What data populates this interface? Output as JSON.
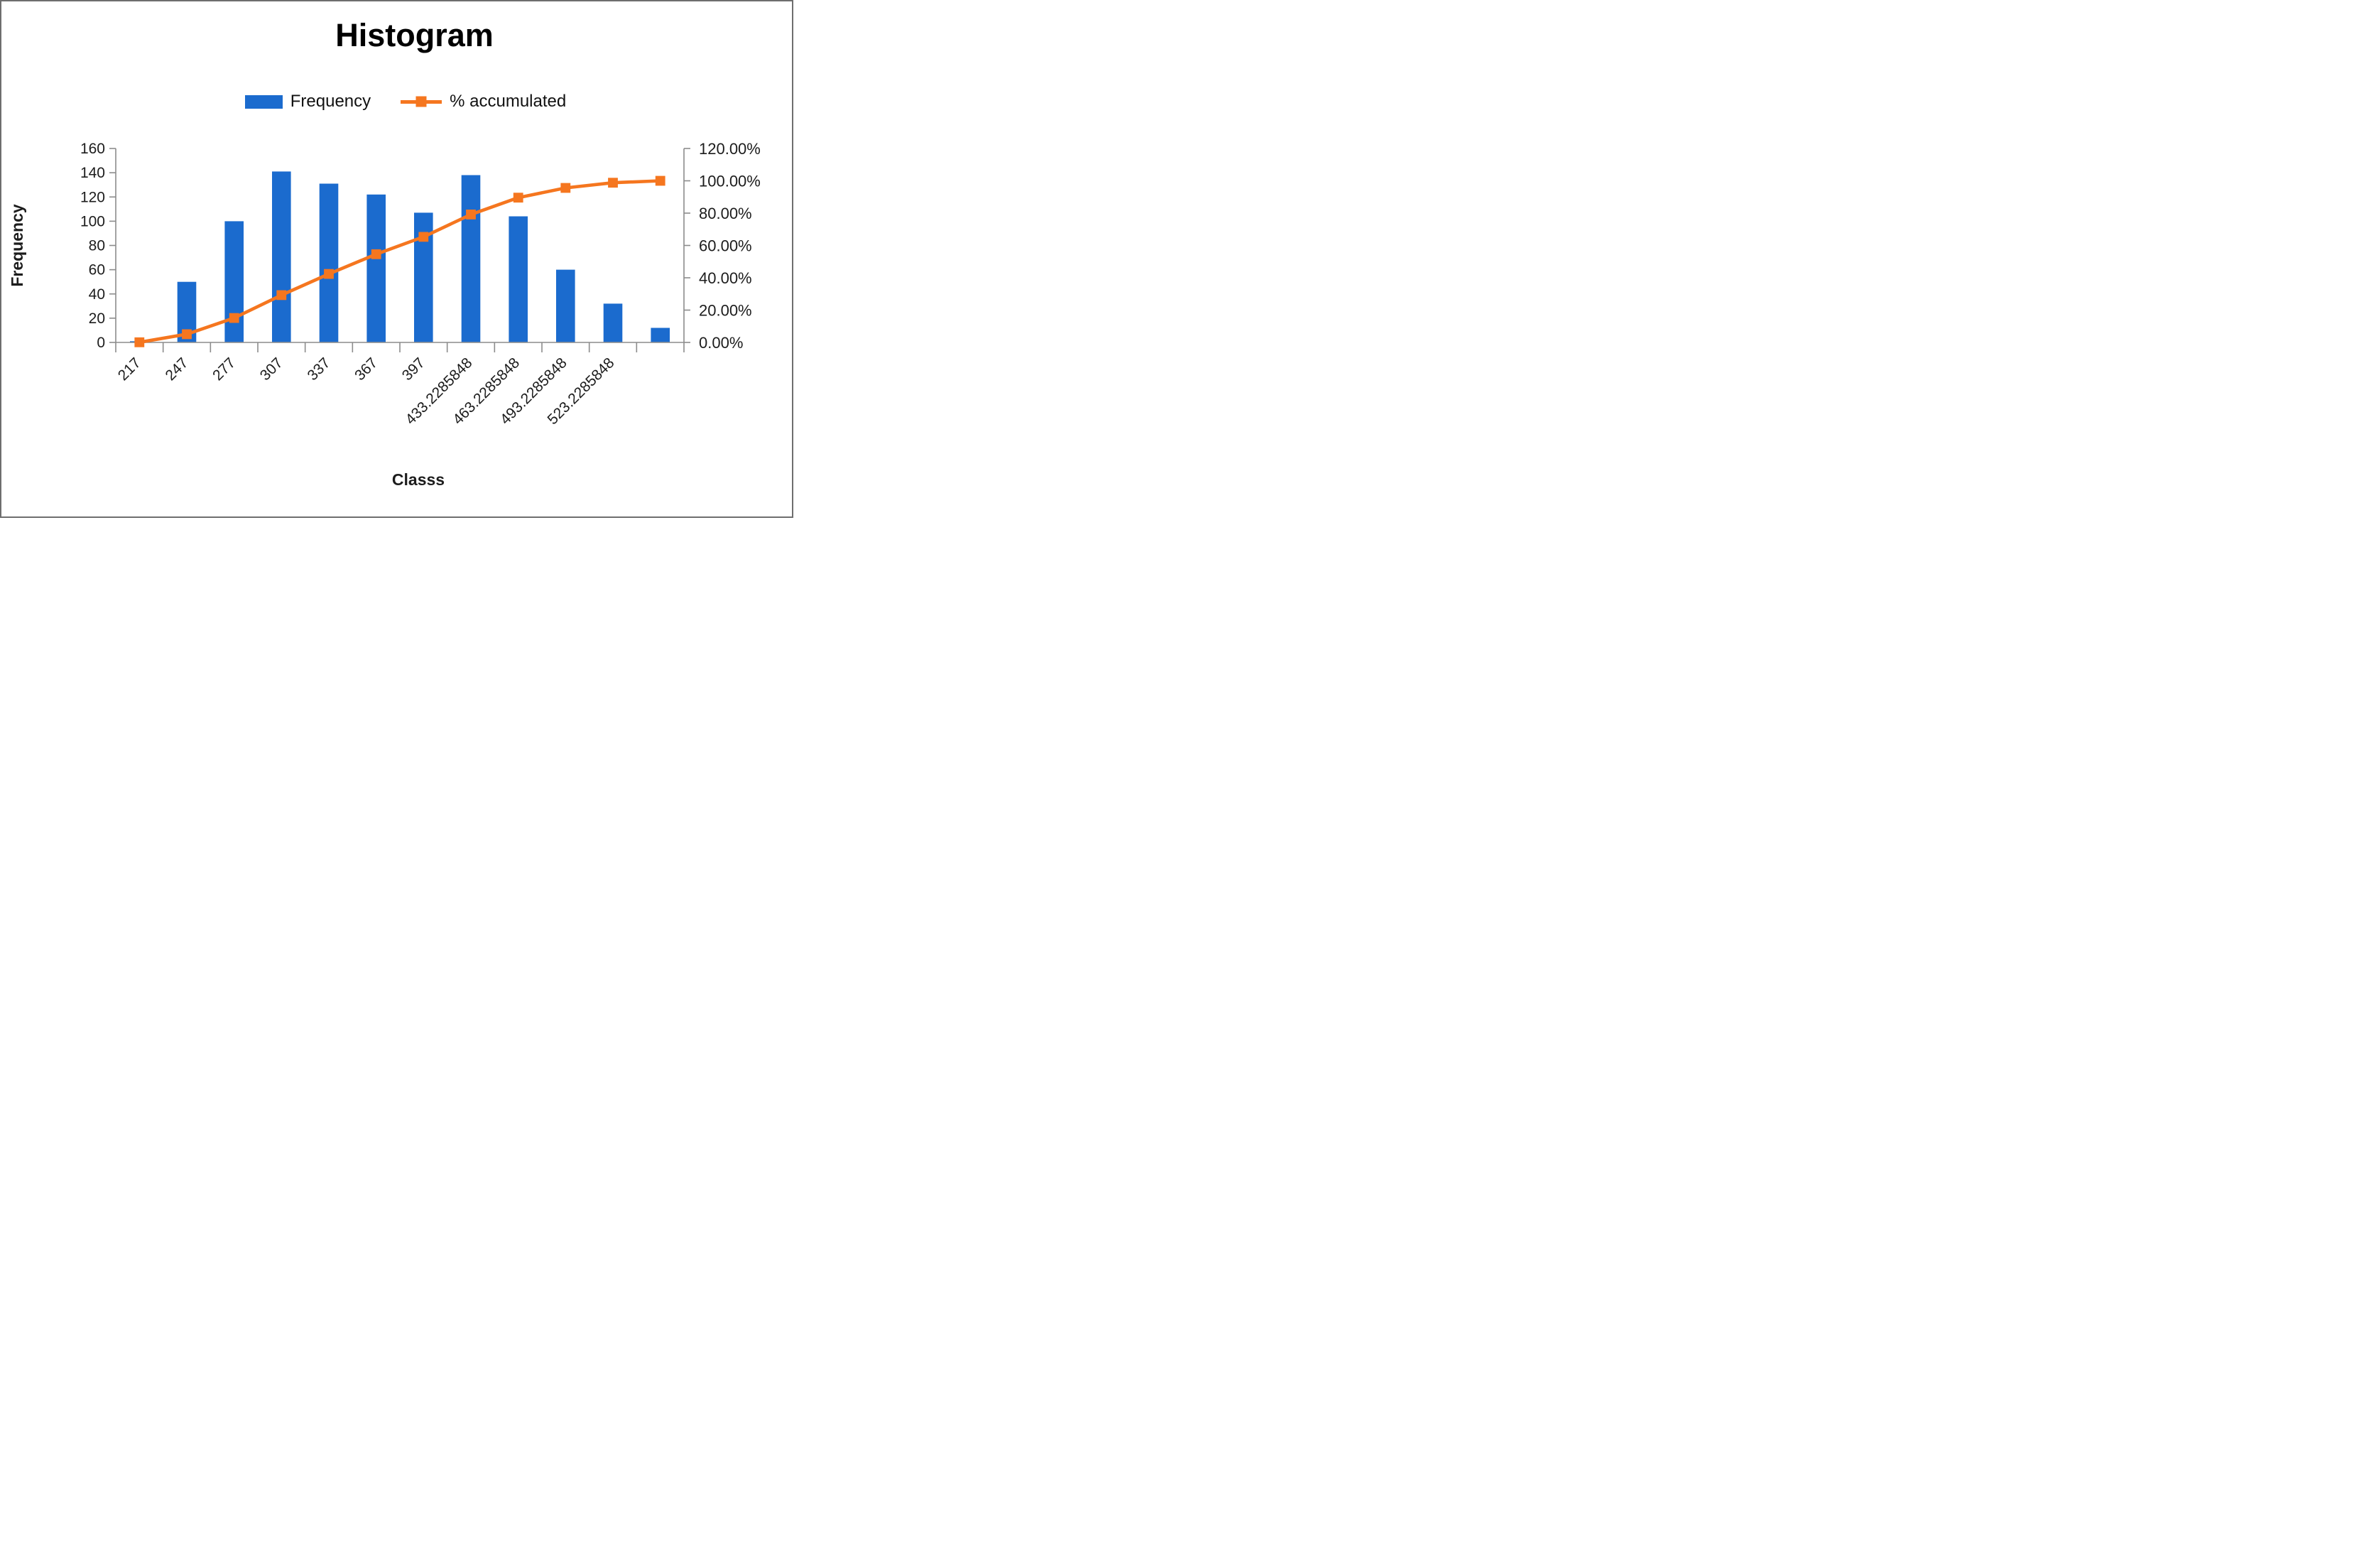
{
  "figure": {
    "background": "#ffffff",
    "border_color": "#6e6e6e"
  },
  "colors": {
    "bar": "#1b6bce",
    "line": "#f5761f",
    "axis": "#8c8c8c",
    "text": "#1c1c1c",
    "title": "#000000"
  },
  "chart_data": {
    "type": "bar",
    "subtype": "pareto-combo-bar-line",
    "title": "Histogram",
    "xlabel": "Classs",
    "ylabel": "Frequency",
    "grid": false,
    "legend_position": "top",
    "x_tick_rotation": -45,
    "categories": [
      "217",
      "247",
      "277",
      "307",
      "337",
      "367",
      "397",
      "433.2285848",
      "463.2285848",
      "493.2285848",
      "523.2285848",
      ""
    ],
    "series": [
      {
        "name": "Frequency",
        "type": "bar",
        "axis": "left",
        "color": "#1b6bce",
        "values": [
          1,
          50,
          100,
          141,
          131,
          122,
          107,
          138,
          104,
          60,
          32,
          12
        ]
      },
      {
        "name": "% accumulated",
        "type": "line",
        "axis": "right",
        "color": "#f5761f",
        "marker": "square",
        "values_percent": [
          0.1,
          5.11,
          15.13,
          29.26,
          42.38,
          54.61,
          65.33,
          79.16,
          89.58,
          95.59,
          98.8,
          100.0
        ]
      }
    ],
    "axes": {
      "left": {
        "min": 0,
        "max": 160,
        "step": 20,
        "tick_labels": [
          "0",
          "20",
          "40",
          "60",
          "80",
          "100",
          "120",
          "140",
          "160"
        ]
      },
      "right": {
        "min": 0,
        "max": 120,
        "step": 20,
        "tick_labels": [
          "0.00%",
          "20.00%",
          "40.00%",
          "60.00%",
          "80.00%",
          "100.00%",
          "120.00%"
        ]
      }
    }
  }
}
